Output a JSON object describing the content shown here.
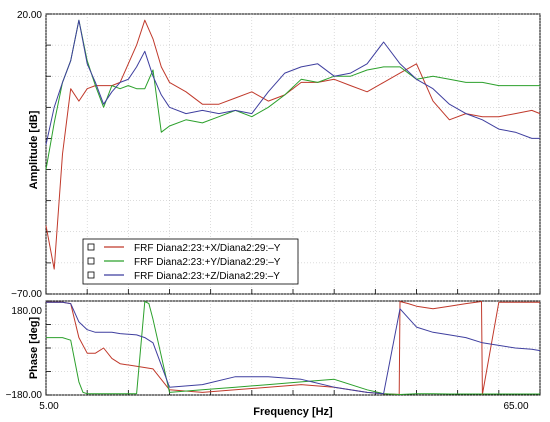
{
  "chart_data": {
    "type": "line",
    "x_unit_label": "Frequency [Hz]",
    "x_ticks": [
      "5.00",
      "65.00"
    ],
    "xlim": [
      5,
      65
    ],
    "series": [
      {
        "name": "FRF Diana2:23:+X/Diana2:29:–Y",
        "color": "#c0392b"
      },
      {
        "name": "FRF Diana2:23:+Y/Diana2:29:–Y",
        "color": "#2ca02c"
      },
      {
        "name": "FRF Diana2:23:+Z/Diana2:29:–Y",
        "color": "#3f3f9f"
      }
    ],
    "panels": [
      {
        "id": "amplitude",
        "ylabel": "Amplitude [dB]",
        "ylim": [
          -70,
          20
        ],
        "y_ticks": [
          "20.00",
          "−70.00"
        ],
        "grid": true,
        "series_values": [
          {
            "x": [
              5,
              6,
              7,
              8,
              9,
              10,
              11,
              12,
              13,
              14,
              15,
              16,
              17,
              18,
              19,
              20,
              22,
              24,
              26,
              28,
              30,
              32,
              34,
              36,
              38,
              40,
              42,
              44,
              46,
              48,
              50,
              52,
              54,
              56,
              58,
              60,
              62,
              64,
              65
            ],
            "y": [
              -48,
              -62,
              -25,
              -4,
              -8,
              -4,
              -3,
              -3,
              -3,
              -2,
              4,
              10,
              18,
              12,
              3,
              -2,
              -5,
              -9,
              -9,
              -7,
              -5,
              -8,
              -6,
              -2,
              -2,
              -1,
              -3,
              -5,
              -2,
              1,
              4,
              -8,
              -14,
              -12,
              -13,
              -13,
              -12,
              -11,
              -12
            ]
          },
          {
            "x": [
              5,
              6,
              7,
              8,
              9,
              10,
              11,
              12,
              13,
              14,
              15,
              16,
              17,
              18,
              19,
              20,
              22,
              24,
              26,
              28,
              30,
              32,
              34,
              36,
              38,
              40,
              42,
              44,
              46,
              48,
              50,
              52,
              54,
              56,
              58,
              60,
              62,
              64,
              65
            ],
            "y": [
              -30,
              -15,
              -2,
              5,
              18,
              5,
              -3,
              -10,
              -3,
              -4,
              -3,
              -4,
              -4,
              2,
              -18,
              -16,
              -14,
              -15,
              -13,
              -11,
              -13,
              -10,
              -6,
              -1,
              -2,
              0,
              0,
              2,
              3,
              3,
              -1,
              0,
              -1,
              -2,
              -2,
              -3,
              -3,
              -3,
              -3
            ]
          },
          {
            "x": [
              5,
              6,
              7,
              8,
              9,
              10,
              11,
              12,
              13,
              14,
              15,
              16,
              17,
              18,
              19,
              20,
              22,
              24,
              26,
              28,
              30,
              32,
              34,
              36,
              38,
              40,
              42,
              44,
              46,
              48,
              50,
              52,
              54,
              56,
              58,
              60,
              62,
              64,
              65
            ],
            "y": [
              -22,
              -10,
              -2,
              5,
              18,
              4,
              -2,
              -9,
              -5,
              -2,
              -1,
              3,
              8,
              0,
              -6,
              -10,
              -12,
              -11,
              -12,
              -11,
              -12,
              -5,
              1,
              3,
              4,
              0,
              1,
              4,
              11,
              4,
              -1,
              -4,
              -9,
              -12,
              -14,
              -17,
              -18,
              -20,
              -20
            ]
          }
        ]
      },
      {
        "id": "phase",
        "ylabel": "Phase [deg]",
        "ylim": [
          -180,
          180
        ],
        "y_ticks": [
          "180.00",
          "−180.00"
        ],
        "grid": true,
        "series_values": [
          {
            "x": [
              5,
              7,
              8,
              9,
              10,
              11,
              12,
              13,
              14,
              16,
              18,
              20,
              24,
              28,
              32,
              36,
              40,
              44,
              46,
              47.9,
              48,
              49,
              50,
              52,
              54,
              56,
              57.9,
              58,
              60,
              62,
              64,
              65
            ],
            "y": [
              175,
              175,
              170,
              40,
              -20,
              -20,
              0,
              -40,
              -60,
              -70,
              -80,
              -160,
              -170,
              -160,
              -150,
              -140,
              -150,
              -170,
              -175,
              -178,
              178,
              170,
              160,
              150,
              160,
              170,
              178,
              -178,
              175,
              175,
              175,
              175
            ]
          },
          {
            "x": [
              5,
              7,
              8,
              9,
              9.5,
              10,
              11,
              12,
              13,
              14,
              15,
              16,
              17,
              17.5,
              18,
              20,
              24,
              28,
              32,
              36,
              40,
              44,
              46,
              48,
              50,
              52,
              54,
              56,
              58,
              60,
              62,
              64,
              65
            ],
            "y": [
              40,
              40,
              30,
              -130,
              -170,
              -175,
              -175,
              -175,
              -175,
              -175,
              -175,
              -175,
              178,
              170,
              110,
              -170,
              -160,
              -150,
              -140,
              -130,
              -120,
              -160,
              -175,
              -178,
              -175,
              -175,
              -176,
              -176,
              -176,
              -176,
              -176,
              -176,
              -176
            ]
          },
          {
            "x": [
              5,
              7,
              8,
              9,
              10,
              11,
              12,
              13,
              14,
              16,
              17,
              18,
              20,
              24,
              28,
              32,
              36,
              40,
              44,
              46,
              48,
              50,
              52,
              54,
              56,
              58,
              60,
              62,
              64,
              65
            ],
            "y": [
              175,
              175,
              170,
              100,
              70,
              60,
              60,
              60,
              55,
              50,
              40,
              20,
              -150,
              -140,
              -110,
              -110,
              -120,
              -150,
              -170,
              -175,
              150,
              80,
              60,
              50,
              40,
              20,
              10,
              0,
              -5,
              -10
            ]
          }
        ]
      }
    ]
  }
}
